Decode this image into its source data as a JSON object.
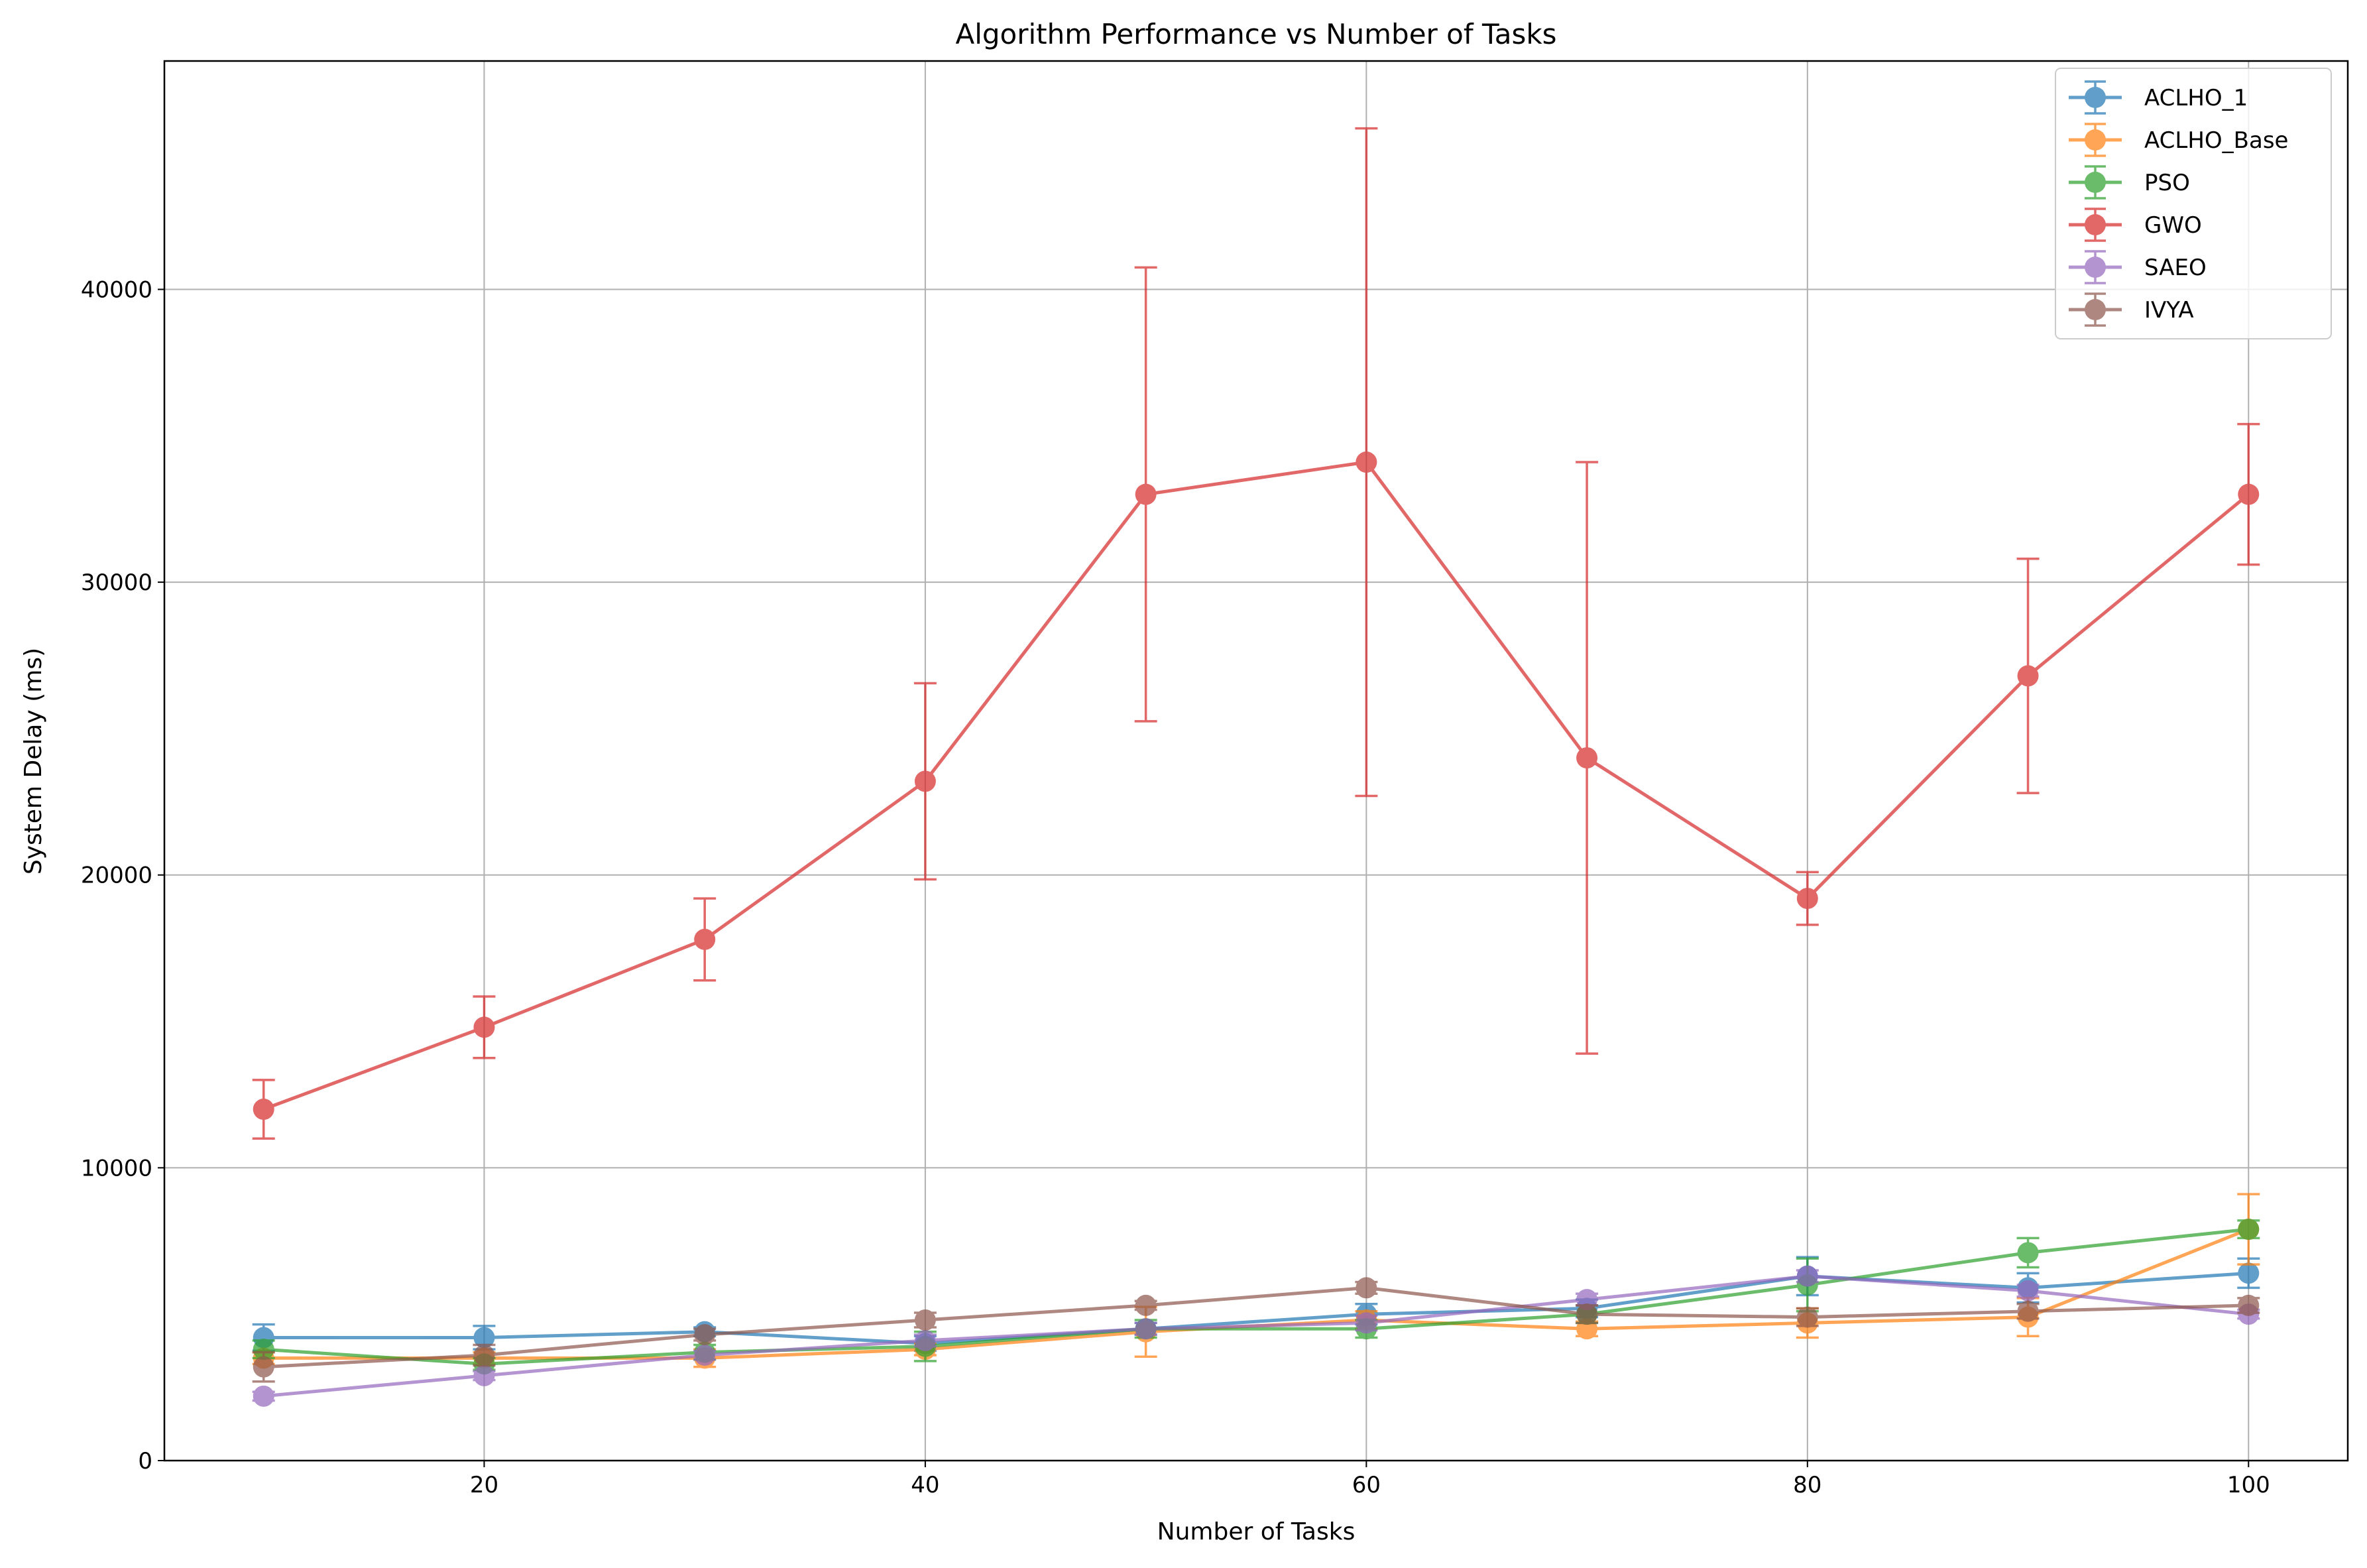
{
  "chart_data": {
    "type": "line",
    "title": "Algorithm Performance vs Number of Tasks",
    "xlabel": "Number of Tasks",
    "ylabel": "System Delay (ms)",
    "xlim": [
      5.5,
      104.5
    ],
    "ylim": [
      0,
      47800
    ],
    "x_ticks": [
      20,
      40,
      60,
      80,
      100
    ],
    "y_ticks": [
      0,
      10000,
      20000,
      30000,
      40000
    ],
    "grid": true,
    "legend_position": "top-right",
    "x": [
      10,
      20,
      30,
      40,
      50,
      60,
      70,
      80,
      90,
      100
    ],
    "series": [
      {
        "name": "ACLHO_1",
        "color": "#1f77b4",
        "values": [
          4200,
          4200,
          4400,
          4000,
          4500,
          5000,
          5200,
          6300,
          5900,
          6400
        ],
        "errors": [
          450,
          400,
          150,
          250,
          200,
          350,
          300,
          650,
          500,
          500
        ]
      },
      {
        "name": "ACLHO_Base",
        "color": "#ff7f0e",
        "values": [
          3500,
          3500,
          3500,
          3800,
          4400,
          4800,
          4500,
          4700,
          4900,
          7900
        ],
        "errors": [
          200,
          200,
          300,
          200,
          850,
          300,
          250,
          500,
          650,
          1200
        ]
      },
      {
        "name": "PSO",
        "color": "#2ca02c",
        "values": [
          3800,
          3300,
          3700,
          3900,
          4500,
          4500,
          5000,
          6000,
          7100,
          7900
        ],
        "errors": [
          300,
          200,
          250,
          500,
          300,
          300,
          300,
          900,
          500,
          300
        ]
      },
      {
        "name": "GWO",
        "color": "#d62728",
        "values": [
          12000,
          14800,
          17800,
          23200,
          33000,
          34100,
          24000,
          19200,
          26800,
          33000
        ],
        "errors": [
          1000,
          1050,
          1400,
          3350,
          7750,
          11400,
          10100,
          900,
          4000,
          2400
        ]
      },
      {
        "name": "SAEO",
        "color": "#9467bd",
        "values": [
          2200,
          2900,
          3600,
          4100,
          4500,
          4700,
          5500,
          6300,
          5800,
          5000
        ],
        "errors": [
          150,
          150,
          150,
          200,
          200,
          250,
          200,
          200,
          200,
          150
        ]
      },
      {
        "name": "IVYA",
        "color": "#8c564b",
        "values": [
          3200,
          3600,
          4300,
          4800,
          5300,
          5900,
          5000,
          4900,
          5100,
          5300
        ],
        "errors": [
          500,
          350,
          200,
          250,
          150,
          200,
          300,
          300,
          250,
          250
        ]
      }
    ]
  }
}
